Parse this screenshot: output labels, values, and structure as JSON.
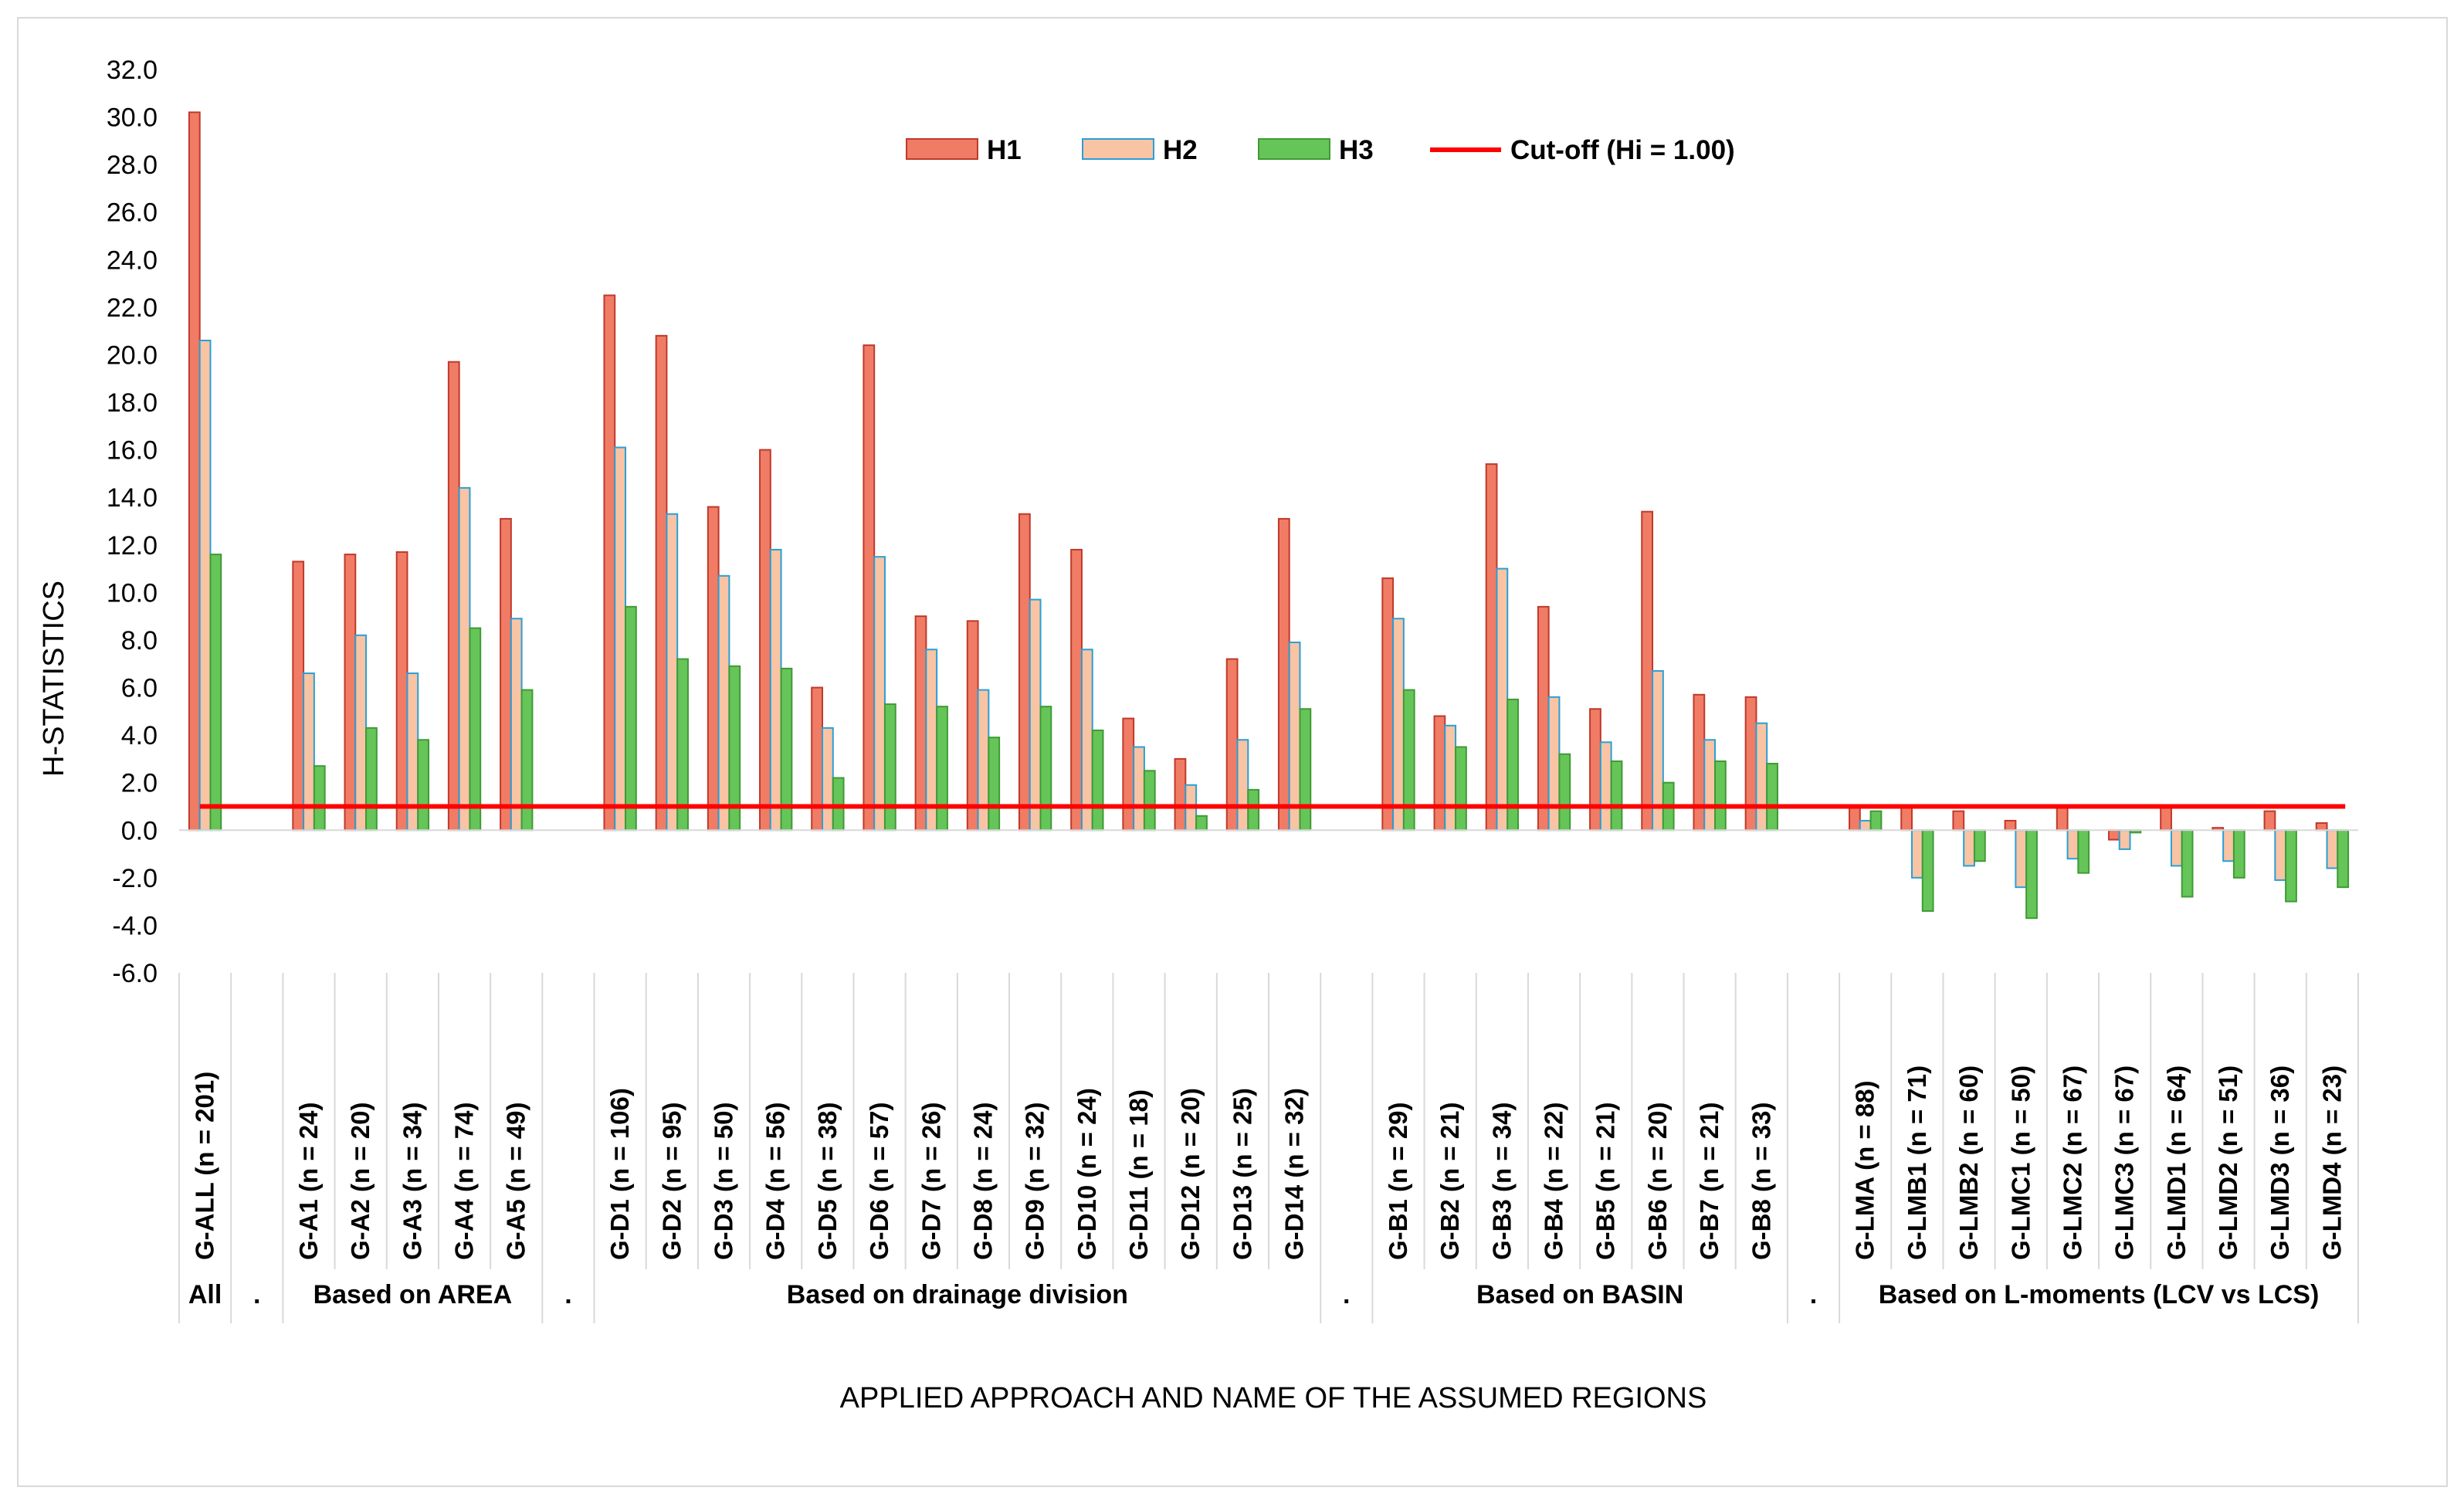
{
  "chart_data": {
    "type": "bar",
    "title": "",
    "xlabel": "APPLIED APPROACH AND NAME OF THE ASSUMED REGIONS",
    "ylabel": "H-STATISTICS",
    "ylim": [
      -6.0,
      32.0
    ],
    "ytick_step": 2.0,
    "grid": false,
    "legend_position": "top",
    "cutoff": {
      "name": "Cut-off (Hi = 1.00)",
      "value": 1.0,
      "color": "#ff0000"
    },
    "groups": [
      {
        "label": "All",
        "categories": [
          "G-ALL (n = 201)"
        ]
      },
      {
        "label": ".",
        "categories": []
      },
      {
        "label": "Based on AREA",
        "categories": [
          "G-A1 (n = 24)",
          "G-A2 (n = 20)",
          "G-A3 (n = 34)",
          "G-A4 (n = 74)",
          "G-A5 (n = 49)"
        ]
      },
      {
        "label": ".",
        "categories": []
      },
      {
        "label": "Based on drainage division",
        "categories": [
          "G-D1 (n = 106)",
          "G-D2 (n = 95)",
          "G-D3 (n = 50)",
          "G-D4 (n = 56)",
          "G-D5 (n = 38)",
          "G-D6 (n = 57)",
          "G-D7 (n = 26)",
          "G-D8 (n = 24)",
          "G-D9 (n = 32)",
          "G-D10 (n = 24)",
          "G-D11 (n = 18)",
          "G-D12 (n = 20)",
          "G-D13 (n = 25)",
          "G-D14 (n = 32)"
        ]
      },
      {
        "label": ".",
        "categories": []
      },
      {
        "label": "Based on BASIN",
        "categories": [
          "G-B1 (n = 29)",
          "G-B2 (n = 21)",
          "G-B3 (n = 34)",
          "G-B4 (n = 22)",
          "G-B5 (n = 21)",
          "G-B6 (n = 20)",
          "G-B7 (n = 21)",
          "G-B8 (n = 33)"
        ]
      },
      {
        "label": ".",
        "categories": []
      },
      {
        "label": "Based on L-moments (LCV vs LCS)",
        "categories": [
          "G-LMA (n = 88)",
          "G-LMB1 (n = 71)",
          "G-LMB2 (n = 60)",
          "G-LMC1 (n = 50)",
          "G-LMC2 (n = 67)",
          "G-LMC3 (n = 67)",
          "G-LMD1 (n = 64)",
          "G-LMD2 (n = 51)",
          "G-LMD3 (n = 36)",
          "G-LMD4 (n = 23)"
        ]
      }
    ],
    "series": [
      {
        "name": "H1",
        "color": "#f07c65",
        "stroke": "#c0392b",
        "values": [
          30.2,
          null,
          11.3,
          11.6,
          11.7,
          19.7,
          13.1,
          null,
          22.5,
          20.8,
          13.6,
          16.0,
          6.0,
          20.4,
          9.0,
          8.8,
          13.3,
          11.8,
          4.7,
          3.0,
          7.2,
          13.1,
          null,
          10.6,
          4.8,
          15.4,
          9.4,
          5.1,
          13.4,
          5.7,
          5.6,
          null,
          1.0,
          1.0,
          0.8,
          0.4,
          1.0,
          -0.4,
          1.0,
          0.1,
          0.8,
          0.3
        ]
      },
      {
        "name": "H2",
        "color": "#f8c4a4",
        "stroke": "#2a9fd6",
        "values": [
          20.6,
          null,
          6.6,
          8.2,
          6.6,
          14.4,
          8.9,
          null,
          16.1,
          13.3,
          10.7,
          11.8,
          4.3,
          11.5,
          7.6,
          5.9,
          9.7,
          7.6,
          3.5,
          1.9,
          3.8,
          7.9,
          null,
          8.9,
          4.4,
          11.0,
          5.6,
          3.7,
          6.7,
          3.8,
          4.5,
          null,
          0.4,
          -2.0,
          -1.5,
          -2.4,
          -1.2,
          -0.8,
          -1.5,
          -1.3,
          -2.1,
          -1.6
        ]
      },
      {
        "name": "H3",
        "color": "#66c559",
        "stroke": "#3f9a35",
        "values": [
          11.6,
          null,
          2.7,
          4.3,
          3.8,
          8.5,
          5.9,
          null,
          9.4,
          7.2,
          6.9,
          6.8,
          2.2,
          5.3,
          5.2,
          3.9,
          5.2,
          4.2,
          2.5,
          0.6,
          1.7,
          5.1,
          null,
          5.9,
          3.5,
          5.5,
          3.2,
          2.9,
          2.0,
          2.9,
          2.8,
          null,
          0.8,
          -3.4,
          -1.3,
          -3.7,
          -1.8,
          -0.1,
          -2.8,
          -2.0,
          -3.0,
          -2.4
        ]
      }
    ]
  }
}
